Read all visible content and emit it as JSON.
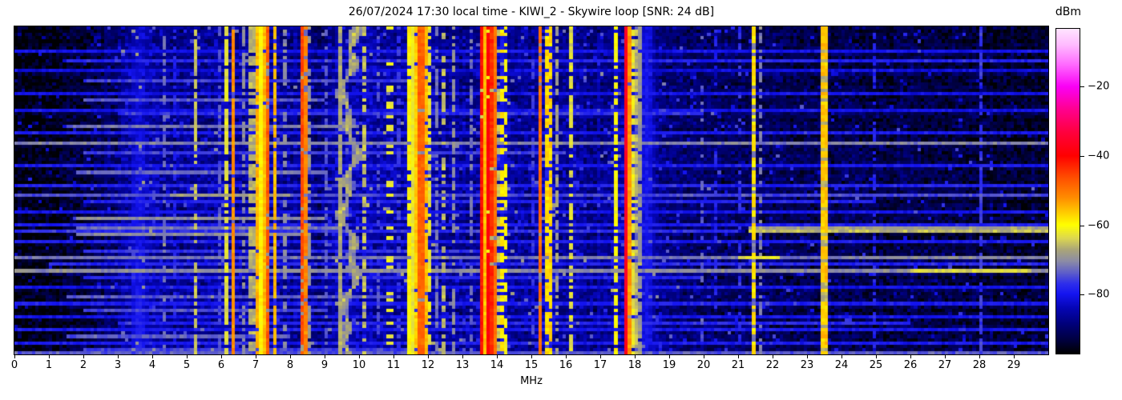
{
  "page": {
    "title": "26/07/2024 17:30 local time - KIWI_2 - Skywire loop [SNR: 24 dB]"
  },
  "chart_data": {
    "type": "heatmap",
    "subtype": "hf-spectrogram-waterfall",
    "title": "26/07/2024 17:30 local time - KIWI_2 - Skywire loop [SNR: 24 dB]",
    "xlabel": "MHz",
    "colorbar_label": "dBm",
    "x_range_mhz": [
      0,
      30
    ],
    "x_tick_labels": [
      "0",
      "1",
      "2",
      "3",
      "4",
      "5",
      "6",
      "7",
      "8",
      "9",
      "10",
      "11",
      "12",
      "13",
      "14",
      "15",
      "16",
      "17",
      "18",
      "19",
      "20",
      "21",
      "22",
      "23",
      "24",
      "25",
      "26",
      "27",
      "28",
      "29"
    ],
    "value_range_dbm": [
      -97,
      -3.3
    ],
    "colorbar_ticks": [
      {
        "label": "−20",
        "value": -20
      },
      {
        "label": "−40",
        "value": -40
      },
      {
        "label": "−60",
        "value": -60
      },
      {
        "label": "−80",
        "value": -80
      }
    ],
    "legend_position": "right-colorbar",
    "grid": {
      "cols": 300,
      "rows": 100
    },
    "seed": 7,
    "noise_sigma_db": 3.1,
    "spike_probability": 0.035,
    "colormap_stops": [
      [
        0.0,
        "#ffe4ff"
      ],
      [
        0.05,
        "#ffbaff"
      ],
      [
        0.11,
        "#ff6aff"
      ],
      [
        0.178,
        "#fa00f5"
      ],
      [
        0.25,
        "#ff008c"
      ],
      [
        0.32,
        "#ff003c"
      ],
      [
        0.391,
        "#ff0000"
      ],
      [
        0.46,
        "#ff5000"
      ],
      [
        0.52,
        "#ff8c00"
      ],
      [
        0.575,
        "#ffd800"
      ],
      [
        0.604,
        "#ffff00"
      ],
      [
        0.645,
        "#dcd750"
      ],
      [
        0.68,
        "#aaa578"
      ],
      [
        0.715,
        "#8c8ca5"
      ],
      [
        0.75,
        "#5f5fc8"
      ],
      [
        0.785,
        "#2d2deb"
      ],
      [
        0.816,
        "#1414f0"
      ],
      [
        0.86,
        "#0505b4"
      ],
      [
        0.91,
        "#000078"
      ],
      [
        0.96,
        "#00003c"
      ],
      [
        1.0,
        "#000000"
      ]
    ],
    "noise_floor_profile_mhz_dbm": [
      [
        0.0,
        -96.5
      ],
      [
        0.8,
        -95.5
      ],
      [
        1.6,
        -94.0
      ],
      [
        2.4,
        -92.0
      ],
      [
        3.0,
        -89.0
      ],
      [
        3.4,
        -85.0
      ],
      [
        3.8,
        -84.5
      ],
      [
        4.3,
        -86.5
      ],
      [
        5.0,
        -87.0
      ],
      [
        6.0,
        -86.5
      ],
      [
        7.0,
        -85.5
      ],
      [
        8.0,
        -86.5
      ],
      [
        8.8,
        -89.5
      ],
      [
        9.3,
        -86.0
      ],
      [
        9.7,
        -84.0
      ],
      [
        10.3,
        -85.0
      ],
      [
        11.0,
        -86.5
      ],
      [
        11.8,
        -85.0
      ],
      [
        12.5,
        -86.0
      ],
      [
        13.4,
        -86.5
      ],
      [
        14.0,
        -85.0
      ],
      [
        14.7,
        -86.5
      ],
      [
        15.5,
        -85.5
      ],
      [
        16.2,
        -86.5
      ],
      [
        17.0,
        -88.0
      ],
      [
        17.8,
        -84.0
      ],
      [
        18.3,
        -84.5
      ],
      [
        19.0,
        -88.5
      ],
      [
        20.0,
        -90.5
      ],
      [
        21.0,
        -90.5
      ],
      [
        22.0,
        -91.0
      ],
      [
        23.0,
        -91.5
      ],
      [
        24.0,
        -92.0
      ],
      [
        25.0,
        -92.5
      ],
      [
        26.0,
        -92.5
      ],
      [
        27.0,
        -93.0
      ],
      [
        28.0,
        -93.0
      ],
      [
        29.0,
        -93.5
      ],
      [
        30.0,
        -94.0
      ]
    ],
    "signal_stripes": [
      {
        "f": 2.62,
        "w": 0.03,
        "level": -85,
        "duty": 0.9
      },
      {
        "f": 3.62,
        "w": 0.3,
        "level": -81,
        "duty": 1.0,
        "soft": true,
        "ramp": 4
      },
      {
        "f": 4.37,
        "w": 0.03,
        "level": -71,
        "duty": 0.5
      },
      {
        "f": 4.62,
        "w": 0.03,
        "level": -74,
        "duty": 0.5
      },
      {
        "f": 5.22,
        "w": 0.035,
        "level": -62,
        "duty": 0.65
      },
      {
        "f": 5.62,
        "w": 0.03,
        "level": -79,
        "duty": 0.6
      },
      {
        "f": 5.95,
        "w": 0.03,
        "level": -74,
        "duty": 0.5
      },
      {
        "f": 6.17,
        "w": 0.04,
        "level": -62,
        "duty": 0.8
      },
      {
        "f": 6.36,
        "w": 0.05,
        "level": -52,
        "duty": 0.95
      },
      {
        "f": 6.62,
        "w": 0.04,
        "level": -68,
        "duty": 0.5
      },
      {
        "f": 6.9,
        "w": 0.04,
        "level": -60,
        "duty": 0.7
      },
      {
        "f": 7.06,
        "w": 0.07,
        "level": -55,
        "duty": 0.95
      },
      {
        "f": 7.22,
        "w": 0.06,
        "level": -54,
        "duty": 0.95
      },
      {
        "f": 7.36,
        "w": 0.04,
        "level": -47,
        "duty": 0.9
      },
      {
        "f": 7.56,
        "w": 0.04,
        "level": -55,
        "duty": 0.85
      },
      {
        "f": 7.82,
        "w": 0.03,
        "level": -66,
        "duty": 0.5
      },
      {
        "f": 8.33,
        "w": 0.05,
        "level": -45,
        "duty": 0.95
      },
      {
        "f": 8.47,
        "w": 0.04,
        "level": -50,
        "duty": 0.9
      },
      {
        "f": 8.58,
        "w": 0.03,
        "level": -65,
        "duty": 0.5
      },
      {
        "f": 9.02,
        "w": 0.03,
        "level": -70,
        "duty": 0.5
      },
      {
        "f": 9.42,
        "w": 0.03,
        "level": -63,
        "duty": 0.95
      },
      {
        "f": 10.12,
        "w": 0.035,
        "level": -62,
        "duty": 0.6
      },
      {
        "f": 10.55,
        "w": 0.03,
        "level": -75,
        "duty": 0.4
      },
      {
        "f": 10.9,
        "w": 0.05,
        "level": -58,
        "duty": 0.28,
        "dim": 25
      },
      {
        "f": 11.17,
        "w": 0.03,
        "level": -74,
        "duty": 0.45
      },
      {
        "f": 11.49,
        "w": 0.05,
        "level": -57,
        "duty": 0.9
      },
      {
        "f": 11.62,
        "w": 0.05,
        "level": -55,
        "duty": 0.9
      },
      {
        "f": 11.8,
        "w": 0.05,
        "level": -44,
        "duty": 0.95
      },
      {
        "f": 11.95,
        "w": 0.06,
        "level": -55,
        "duty": 0.9
      },
      {
        "f": 12.08,
        "w": 0.04,
        "level": -60,
        "duty": 0.7
      },
      {
        "f": 12.23,
        "w": 0.03,
        "level": -70,
        "duty": 0.6
      },
      {
        "f": 12.47,
        "w": 0.03,
        "level": -64,
        "duty": 0.5
      },
      {
        "f": 12.77,
        "w": 0.03,
        "level": -68,
        "duty": 0.6
      },
      {
        "f": 13.25,
        "w": 0.03,
        "level": -72,
        "duty": 0.5
      },
      {
        "f": 13.58,
        "w": 0.05,
        "level": -40,
        "duty": 0.97
      },
      {
        "f": 13.74,
        "w": 0.05,
        "level": -39,
        "duty": 0.97
      },
      {
        "f": 13.88,
        "w": 0.05,
        "level": -42,
        "duty": 0.95
      },
      {
        "f": 13.66,
        "w": 0.1,
        "level": -55,
        "duty": 1.0,
        "soft": true
      },
      {
        "f": 14.12,
        "w": 0.05,
        "level": -57,
        "duty": 0.6
      },
      {
        "f": 14.24,
        "w": 0.04,
        "level": -60,
        "duty": 0.5
      },
      {
        "f": 14.4,
        "w": 0.03,
        "level": -70,
        "duty": 0.4
      },
      {
        "f": 15.02,
        "w": 0.03,
        "level": -72,
        "duty": 0.4
      },
      {
        "f": 15.25,
        "w": 0.04,
        "level": -49,
        "duty": 0.9
      },
      {
        "f": 15.42,
        "w": 0.05,
        "level": -56,
        "duty": 0.85
      },
      {
        "f": 15.55,
        "w": 0.05,
        "level": -57,
        "duty": 0.85
      },
      {
        "f": 15.75,
        "w": 0.04,
        "level": -68,
        "duty": 0.6
      },
      {
        "f": 16.18,
        "w": 0.04,
        "level": -61,
        "duty": 0.65
      },
      {
        "f": 16.4,
        "w": 0.03,
        "level": -70,
        "duty": 0.5
      },
      {
        "f": 16.92,
        "w": 0.03,
        "level": -80,
        "duty": 0.7
      },
      {
        "f": 17.48,
        "w": 0.04,
        "level": -58,
        "duty": 0.75
      },
      {
        "f": 17.74,
        "w": 0.055,
        "level": -36,
        "duty": 1.0
      },
      {
        "f": 17.87,
        "w": 0.04,
        "level": -52,
        "duty": 0.95
      },
      {
        "f": 17.99,
        "w": 0.05,
        "level": -60,
        "duty": 0.8
      },
      {
        "f": 18.12,
        "w": 0.08,
        "level": -68,
        "duty": 0.9,
        "soft": true
      },
      {
        "f": 18.35,
        "w": 0.25,
        "level": -80,
        "duty": 1.0,
        "soft": true
      },
      {
        "f": 19.95,
        "w": 0.03,
        "level": -74,
        "duty": 0.35
      },
      {
        "f": 20.35,
        "w": 0.025,
        "level": -78,
        "duty": 0.4
      },
      {
        "f": 21.02,
        "w": 0.03,
        "level": -73,
        "duty": 0.5
      },
      {
        "f": 21.45,
        "w": 0.045,
        "level": -58,
        "duty": 0.7,
        "dim": 14
      },
      {
        "f": 21.62,
        "w": 0.03,
        "level": -67,
        "duty": 0.55
      },
      {
        "f": 21.9,
        "w": 0.03,
        "level": -78,
        "duty": 0.5
      },
      {
        "f": 22.0,
        "w": 0.025,
        "level": -77,
        "duty": 0.45
      },
      {
        "f": 23.5,
        "w": 0.04,
        "level": -50,
        "duty": 0.8,
        "dim": 10
      },
      {
        "f": 24.95,
        "w": 0.025,
        "level": -78,
        "duty": 0.5
      },
      {
        "f": 28.05,
        "w": 0.025,
        "level": -76,
        "duty": 0.7
      }
    ],
    "wavy_trace": {
      "f": 9.72,
      "amp": 0.16,
      "period_rows": 34,
      "amp2": 0.1,
      "period2_rows": 13,
      "width": 0.13,
      "level": -67
    },
    "broadband_streaks": [
      {
        "row": 7,
        "f0": 0,
        "f1": 30,
        "level": -80
      },
      {
        "row": 10,
        "f0": 1.5,
        "f1": 30,
        "level": -78
      },
      {
        "row": 13,
        "f0": 0,
        "f1": 30,
        "level": -81
      },
      {
        "row": 16,
        "f0": 2,
        "f1": 12,
        "level": -76
      },
      {
        "row": 20,
        "f0": 0,
        "f1": 30,
        "level": -80
      },
      {
        "row": 22,
        "f0": 2,
        "f1": 9,
        "level": -74
      },
      {
        "row": 25,
        "f0": 0,
        "f1": 30,
        "level": -80
      },
      {
        "row": 26,
        "f0": 3,
        "f1": 20,
        "level": -77
      },
      {
        "row": 30,
        "f0": 1.5,
        "f1": 10,
        "level": -72
      },
      {
        "row": 32,
        "f0": 0,
        "f1": 30,
        "level": -79
      },
      {
        "row": 35,
        "f0": 0,
        "f1": 30,
        "level": -71
      },
      {
        "row": 38,
        "f0": 2,
        "f1": 16,
        "level": -76
      },
      {
        "row": 42,
        "f0": 0,
        "f1": 30,
        "level": -79
      },
      {
        "row": 44,
        "f0": 1.8,
        "f1": 9,
        "level": -73
      },
      {
        "row": 48,
        "f0": 0,
        "f1": 30,
        "level": -78
      },
      {
        "row": 51,
        "f0": 0,
        "f1": 30,
        "level": -75
      },
      {
        "row": 51,
        "f0": 4.5,
        "f1": 8,
        "level": -68
      },
      {
        "row": 53,
        "f0": 2,
        "f1": 25,
        "level": -78
      },
      {
        "row": 56,
        "f0": 0,
        "f1": 30,
        "level": -80
      },
      {
        "row": 58,
        "f0": 1.8,
        "f1": 9,
        "level": -70
      },
      {
        "row": 60,
        "f0": 0,
        "f1": 30,
        "level": -79
      },
      {
        "row": 61,
        "f0": 21.3,
        "f1": 30,
        "level": -68
      },
      {
        "row": 62,
        "f0": 21.3,
        "f1": 30,
        "level": -66
      },
      {
        "row": 61,
        "f0": 1.8,
        "f1": 9.5,
        "level": -72
      },
      {
        "row": 62,
        "f0": 0,
        "f1": 21,
        "level": -77
      },
      {
        "row": 63,
        "f0": 1.8,
        "f1": 8.5,
        "level": -70
      },
      {
        "row": 65,
        "f0": 0,
        "f1": 30,
        "level": -79
      },
      {
        "row": 68,
        "f0": 2,
        "f1": 14,
        "level": -77
      },
      {
        "row": 70,
        "f0": 0,
        "f1": 30,
        "level": -72
      },
      {
        "row": 70,
        "f0": 21,
        "f1": 22.2,
        "level": -63
      },
      {
        "row": 70,
        "f0": 24,
        "f1": 29,
        "level": -70
      },
      {
        "row": 72,
        "f0": 1,
        "f1": 30,
        "level": -78
      },
      {
        "row": 74,
        "f0": 0,
        "f1": 30,
        "level": -70
      },
      {
        "row": 74,
        "f0": 26,
        "f1": 29.5,
        "level": -64
      },
      {
        "row": 76,
        "f0": 2,
        "f1": 20,
        "level": -78
      },
      {
        "row": 79,
        "f0": 0,
        "f1": 30,
        "level": -80
      },
      {
        "row": 82,
        "f0": 1.5,
        "f1": 11,
        "level": -74
      },
      {
        "row": 84,
        "f0": 0,
        "f1": 30,
        "level": -79
      },
      {
        "row": 86,
        "f0": 2,
        "f1": 9,
        "level": -75
      },
      {
        "row": 88,
        "f0": 0,
        "f1": 30,
        "level": -80
      },
      {
        "row": 90,
        "f0": 3,
        "f1": 26,
        "level": -78
      },
      {
        "row": 92,
        "f0": 0,
        "f1": 30,
        "level": -79
      },
      {
        "row": 94,
        "f0": 1.5,
        "f1": 8,
        "level": -74
      },
      {
        "row": 96,
        "f0": 0,
        "f1": 30,
        "level": -79
      },
      {
        "row": 98,
        "f0": 2,
        "f1": 12,
        "level": -76
      },
      {
        "row": 99,
        "f0": 0,
        "f1": 30,
        "level": -74
      }
    ]
  }
}
